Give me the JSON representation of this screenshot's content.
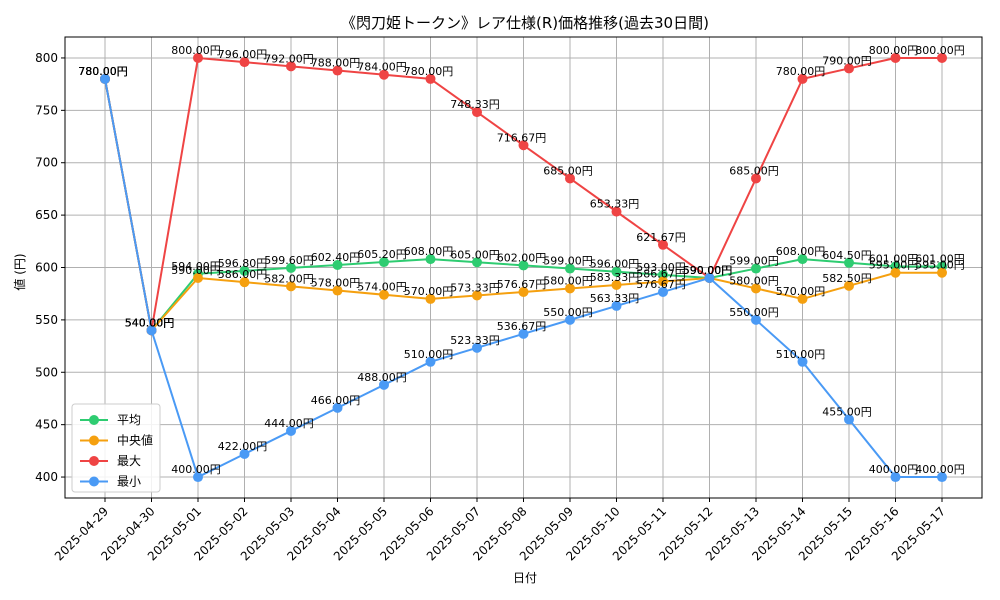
{
  "chart_data": {
    "type": "line",
    "title": "《閃刀姫トークン》レア仕様(R)価格推移(過去30日間)",
    "xlabel": "日付",
    "ylabel": "値 (円)",
    "ylim": [
      380,
      820
    ],
    "yticks": [
      400,
      450,
      500,
      550,
      600,
      650,
      700,
      750,
      800
    ],
    "grid": true,
    "legend_position": "bottom-left",
    "value_suffix": "円",
    "categories": [
      "2025-04-29",
      "2025-04-30",
      "2025-05-01",
      "2025-05-02",
      "2025-05-03",
      "2025-05-04",
      "2025-05-05",
      "2025-05-06",
      "2025-05-07",
      "2025-05-08",
      "2025-05-09",
      "2025-05-10",
      "2025-05-11",
      "2025-05-12",
      "2025-05-13",
      "2025-05-14",
      "2025-05-15",
      "2025-05-16",
      "2025-05-17"
    ],
    "series": [
      {
        "name": "平均",
        "color": "#2ecc71",
        "values": [
          780,
          540,
          594,
          596.8,
          599.6,
          602.4,
          605.2,
          608,
          605,
          602,
          599,
          596,
          593,
          590,
          599,
          608,
          604.5,
          601,
          601
        ]
      },
      {
        "name": "中央値",
        "color": "#f5a00f",
        "values": [
          780,
          540,
          590,
          586,
          582,
          578,
          574,
          570,
          573.33,
          576.67,
          580,
          583.33,
          586.67,
          590,
          580,
          570,
          582.5,
          595,
          595
        ]
      },
      {
        "name": "最大",
        "color": "#ef4444",
        "values": [
          780,
          540,
          800,
          796,
          792,
          788,
          784,
          780,
          748.33,
          716.67,
          685,
          653.33,
          621.67,
          590,
          685,
          780,
          790,
          800,
          800
        ]
      },
      {
        "name": "最小",
        "color": "#4a9af5",
        "values": [
          780,
          540,
          400,
          422,
          444,
          466,
          488,
          510,
          523.33,
          536.67,
          550,
          563.33,
          576.67,
          590,
          550,
          510,
          455,
          400,
          400
        ]
      }
    ]
  }
}
